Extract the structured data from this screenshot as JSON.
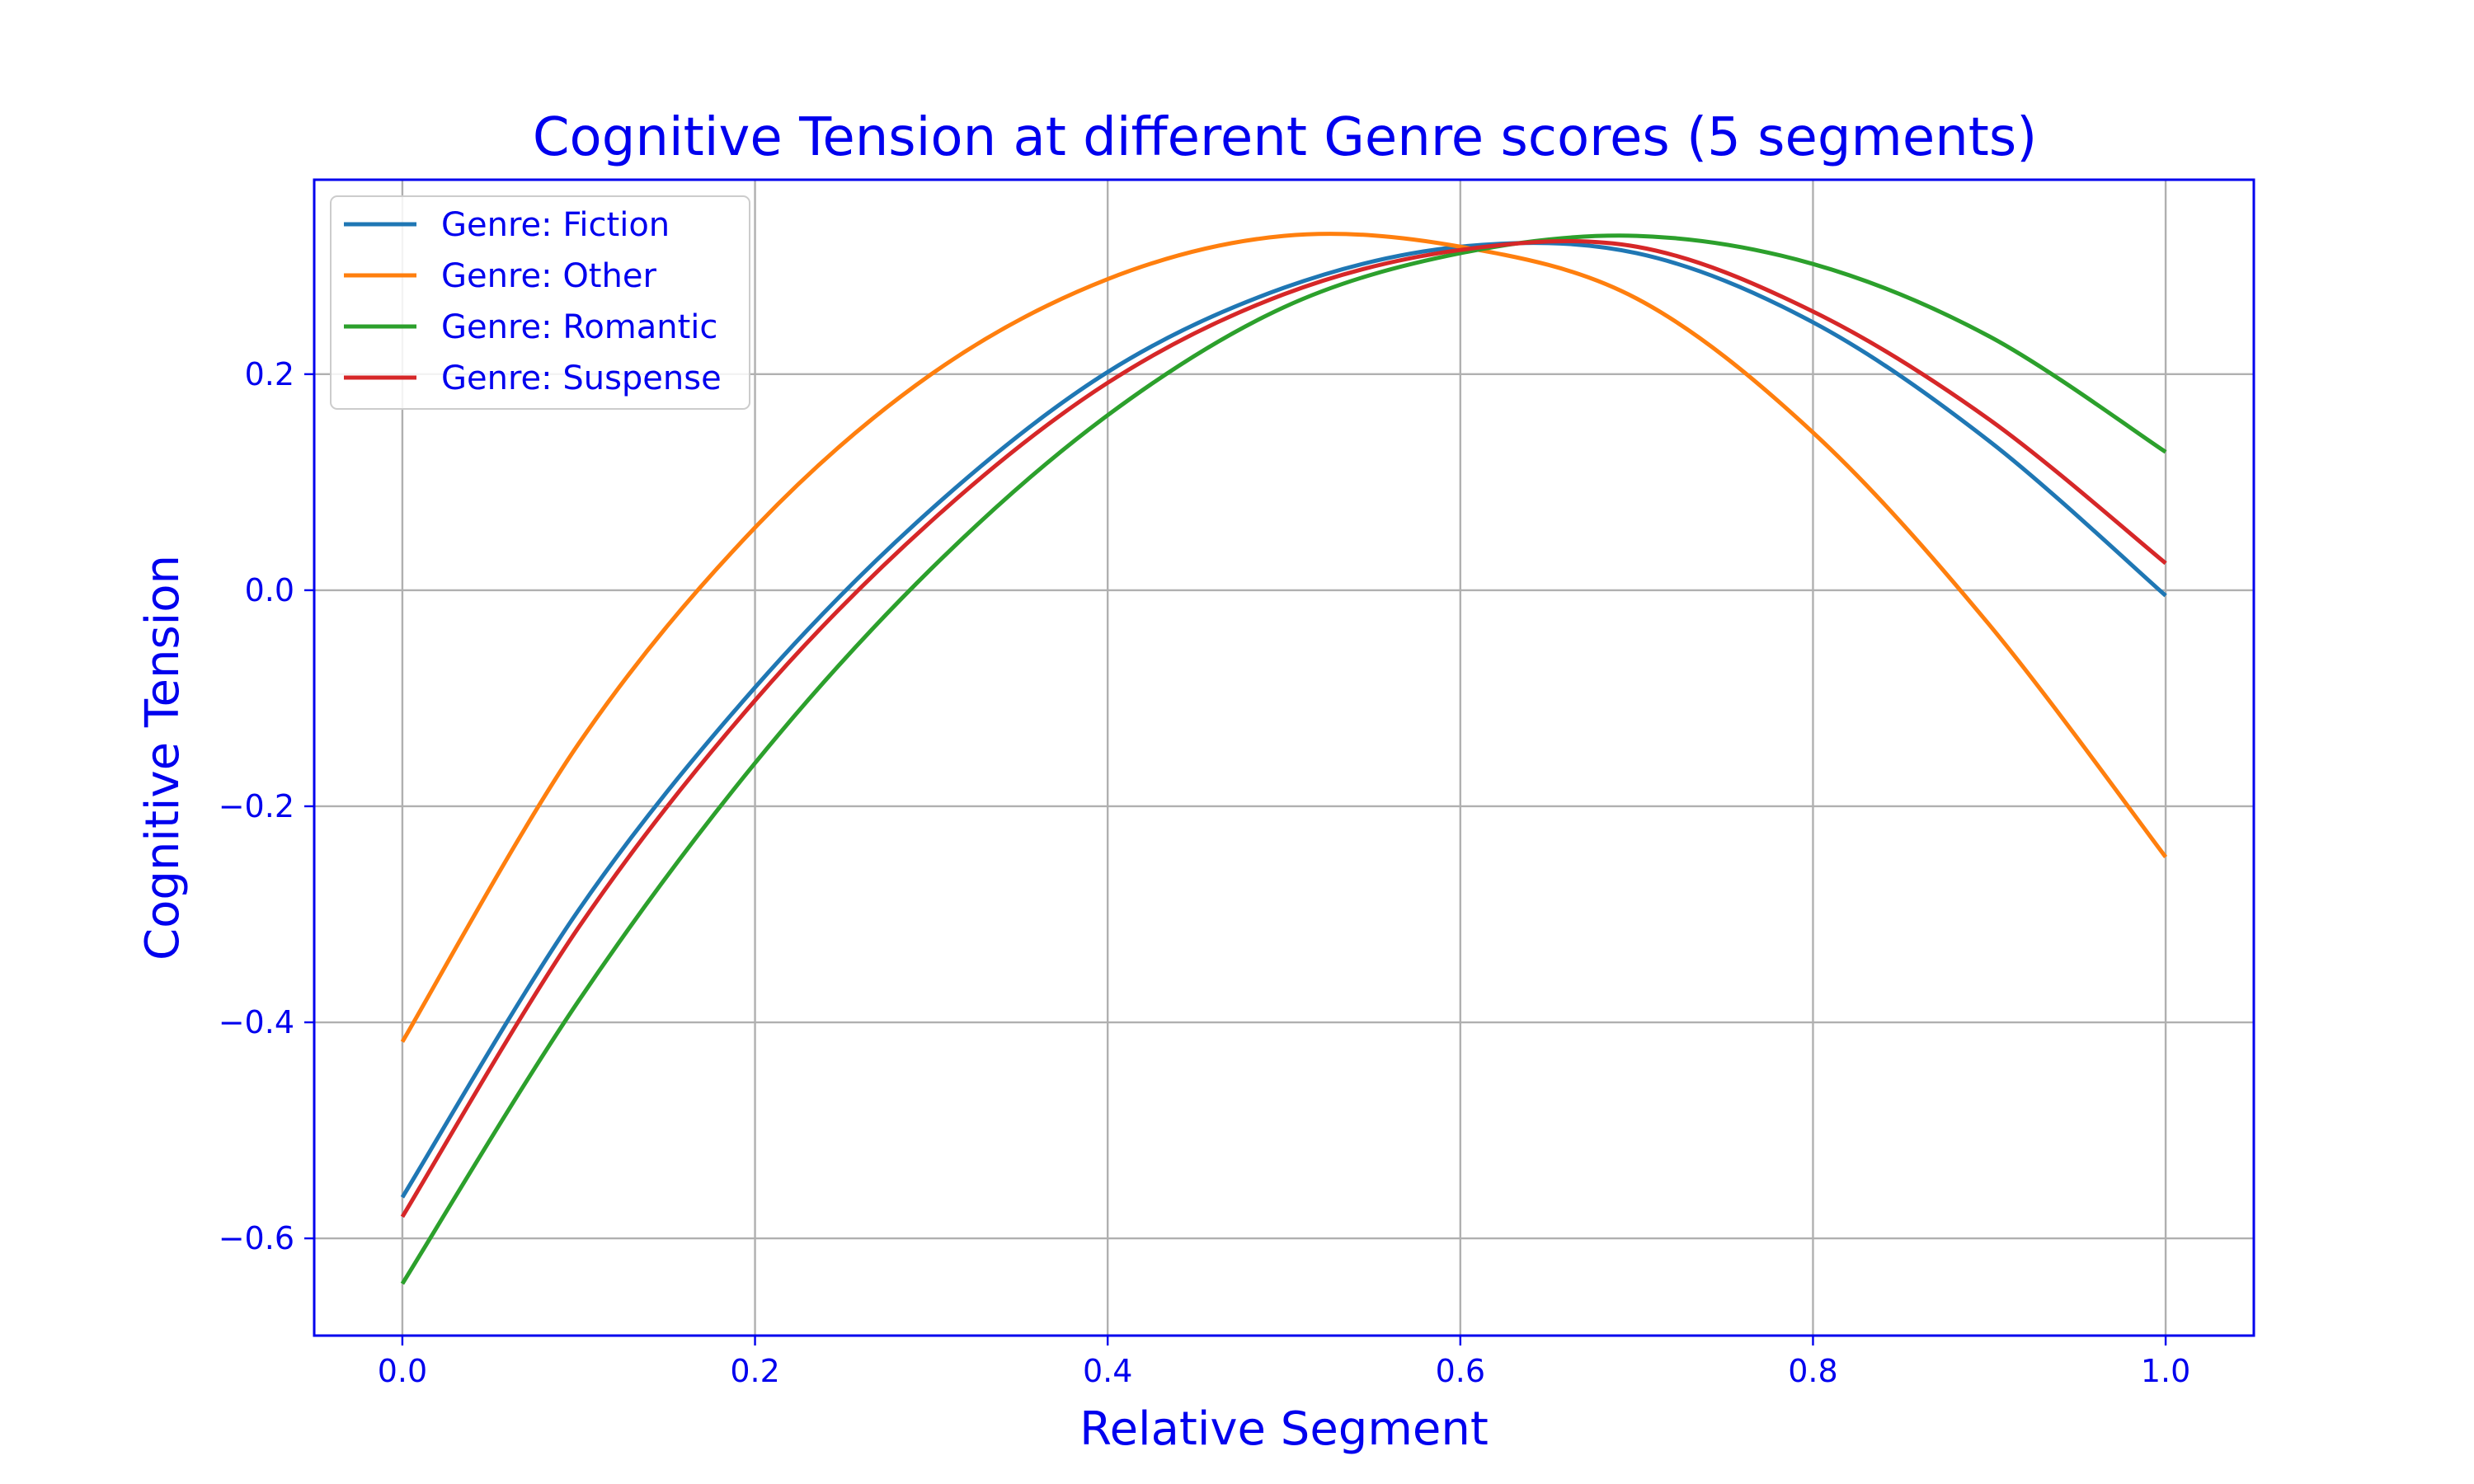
{
  "chart_data": {
    "type": "line",
    "title": "Cognitive Tension at different Genre scores (5 segments)",
    "xlabel": "Relative Segment",
    "ylabel": "Cognitive Tension",
    "xlim": [
      -0.05,
      1.05
    ],
    "ylim": [
      -0.69,
      0.38
    ],
    "x_ticks": [
      0.0,
      0.2,
      0.4,
      0.6,
      0.8,
      1.0
    ],
    "x_tick_labels": [
      "0.0",
      "0.2",
      "0.4",
      "0.6",
      "0.8",
      "1.0"
    ],
    "y_ticks": [
      -0.6,
      -0.4,
      -0.2,
      0.0,
      0.2
    ],
    "y_tick_labels": [
      "−0.6",
      "−0.4",
      "−0.2",
      "0.0",
      "0.2"
    ],
    "grid": true,
    "legend_position": "top-left",
    "axis_color": "#0000ee",
    "x": [
      0.0,
      0.1,
      0.2,
      0.3,
      0.4,
      0.5,
      0.6,
      0.7,
      0.8,
      0.9,
      1.0
    ],
    "series": [
      {
        "name": "Genre: Fiction",
        "color": "#1f77b4",
        "values": [
          -0.562,
          -0.296,
          -0.09,
          0.075,
          0.202,
          0.28,
          0.318,
          0.312,
          0.248,
          0.138,
          -0.005
        ]
      },
      {
        "name": "Genre: Other",
        "color": "#ff7f0e",
        "values": [
          -0.418,
          -0.142,
          0.058,
          0.2,
          0.288,
          0.328,
          0.318,
          0.27,
          0.146,
          -0.032,
          -0.247
        ]
      },
      {
        "name": "Genre: Romantic",
        "color": "#2ca02c",
        "values": [
          -0.642,
          -0.38,
          -0.16,
          0.02,
          0.162,
          0.262,
          0.312,
          0.328,
          0.302,
          0.235,
          0.128
        ]
      },
      {
        "name": "Genre: Suspense",
        "color": "#d62728",
        "values": [
          -0.58,
          -0.312,
          -0.102,
          0.064,
          0.192,
          0.274,
          0.315,
          0.318,
          0.258,
          0.158,
          0.025
        ]
      }
    ]
  }
}
